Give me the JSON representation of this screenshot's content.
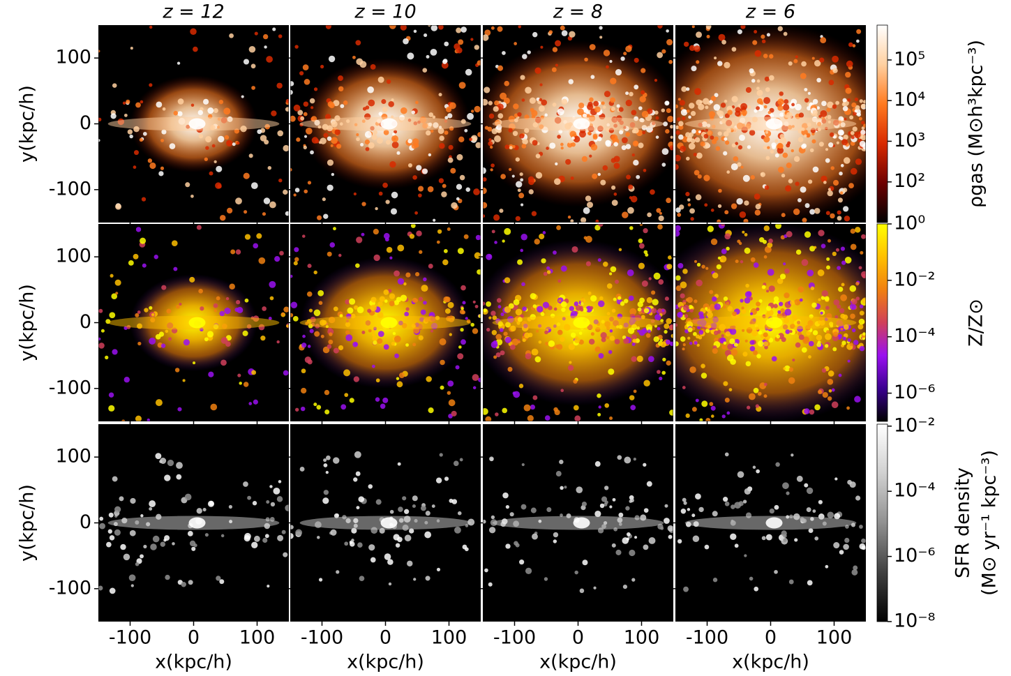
{
  "chart_data": {
    "type": "image-grid",
    "titles": [
      "z = 12",
      "z = 10",
      "z = 8",
      "z = 6"
    ],
    "xlabel": "x(kpc/h)",
    "ylabel": "y(kpc/h)",
    "xlim": [
      -150,
      150
    ],
    "ylim": [
      -150,
      150
    ],
    "xticks": [
      -100,
      0,
      100
    ],
    "yticks": [
      -100,
      0,
      100
    ],
    "colorbars": [
      {
        "label": [
          "ρgas (M⊙h³kpc⁻³)"
        ],
        "scale": "log",
        "lim": [
          10,
          720000
        ],
        "ticks": [
          {
            "value": 100,
            "label": "10²"
          },
          {
            "value": 1000,
            "label": "10³"
          },
          {
            "value": 10000,
            "label": "10⁴"
          },
          {
            "value": 100000,
            "label": "10⁵"
          }
        ],
        "colors": [
          "#000000",
          "#6e0000",
          "#d82a00",
          "#ff7a20",
          "#ffd0a0",
          "#ffffff"
        ]
      },
      {
        "label": [
          "Z/Z⊙"
        ],
        "scale": "log",
        "lim": [
          1e-07,
          1
        ],
        "ticks": [
          {
            "value": 1,
            "label": "10⁰"
          },
          {
            "value": 0.01,
            "label": "10⁻²"
          },
          {
            "value": 0.0001,
            "label": "10⁻⁴"
          },
          {
            "value": 1e-06,
            "label": "10⁻⁶"
          }
        ],
        "colors": [
          "#000000",
          "#3a0090",
          "#9a10f0",
          "#d0405a",
          "#f08010",
          "#ffc000",
          "#ffff00"
        ]
      },
      {
        "label": [
          "SFR density",
          "(M⊙ yr⁻¹ kpc⁻³)"
        ],
        "scale": "log",
        "lim": [
          1e-08,
          0.0115
        ],
        "ticks": [
          {
            "value": 0.01,
            "label": "10⁻²"
          },
          {
            "value": 0.0001,
            "label": "10⁻⁴"
          },
          {
            "value": 1e-06,
            "label": "10⁻⁶"
          },
          {
            "value": 1e-08,
            "label": "10⁻⁸"
          }
        ],
        "colors": [
          "#000000",
          "#404040",
          "#909090",
          "#d0d0d0",
          "#ffffff"
        ]
      }
    ]
  }
}
